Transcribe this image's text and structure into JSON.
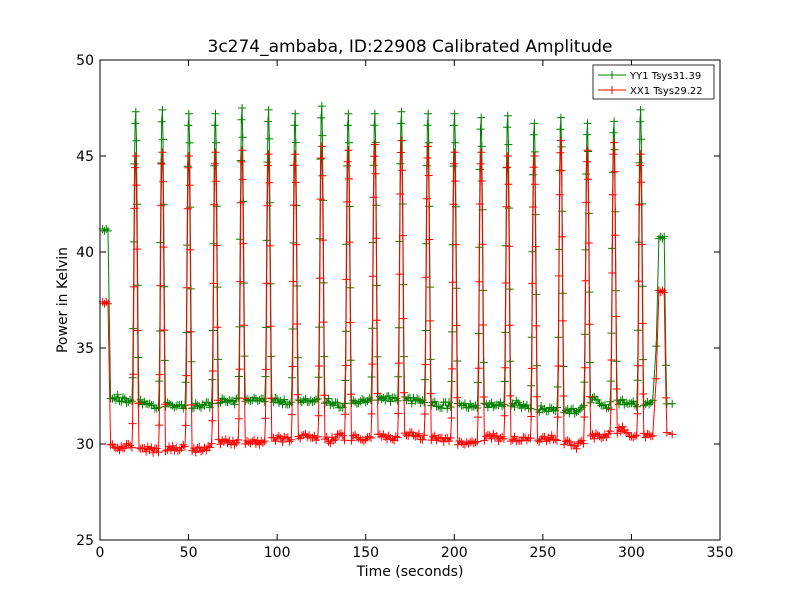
{
  "chart_data": {
    "type": "line",
    "title": "3c274_ambaba, ID:22908 Calibrated Amplitude",
    "xlabel": "Time (seconds)",
    "ylabel": "Power in Kelvin",
    "xlim": [
      0,
      350
    ],
    "ylim": [
      25,
      50
    ],
    "xticks": [
      0,
      50,
      100,
      150,
      200,
      250,
      300,
      350
    ],
    "yticks": [
      25,
      30,
      35,
      40,
      45,
      50
    ],
    "grid": false,
    "legend_position": "top-right",
    "markers": "plus",
    "series": [
      {
        "name": "YY1 Tsys31.39",
        "color": "#008000",
        "baseline": 32.2,
        "start": {
          "x": [
            1.5,
            2.5,
            3.5,
            4.5
          ],
          "y": [
            41.2,
            41.1,
            41.2,
            41.1
          ]
        },
        "end": {
          "x": [
            315.5,
            316.5,
            317.5,
            318.5
          ],
          "y": [
            40.7,
            40.8,
            40.7,
            40.8
          ]
        },
        "tail": {
          "x": [
            320,
            323
          ],
          "y": [
            32.1,
            32.1
          ]
        },
        "baseline_points": [
          [
            6,
            32.5
          ],
          [
            10,
            32.4
          ],
          [
            15,
            32.3
          ],
          [
            25,
            32.2
          ],
          [
            30,
            32.0
          ],
          [
            40,
            32.1
          ],
          [
            45,
            32.0
          ],
          [
            55,
            32.0
          ],
          [
            60,
            32.0
          ],
          [
            70,
            32.3
          ],
          [
            75,
            32.2
          ],
          [
            85,
            32.4
          ],
          [
            90,
            32.4
          ],
          [
            100,
            32.2
          ],
          [
            105,
            32.2
          ],
          [
            115,
            32.3
          ],
          [
            120,
            32.3
          ],
          [
            130,
            32.2
          ],
          [
            135,
            32.0
          ],
          [
            145,
            32.2
          ],
          [
            150,
            32.2
          ],
          [
            160,
            32.4
          ],
          [
            165,
            32.3
          ],
          [
            175,
            32.3
          ],
          [
            180,
            32.2
          ],
          [
            190,
            32.1
          ],
          [
            195,
            32.0
          ],
          [
            205,
            32.1
          ],
          [
            210,
            32.0
          ],
          [
            220,
            32.0
          ],
          [
            225,
            32.0
          ],
          [
            235,
            32.1
          ],
          [
            240,
            31.9
          ],
          [
            250,
            31.8
          ],
          [
            255,
            31.8
          ],
          [
            265,
            31.7
          ],
          [
            270,
            31.7
          ],
          [
            280,
            32.4
          ],
          [
            285,
            32.0
          ],
          [
            295,
            32.2
          ],
          [
            300,
            32.1
          ],
          [
            310,
            32.1
          ]
        ],
        "peaks": [
          {
            "x": 20,
            "y": 47.3
          },
          {
            "x": 35,
            "y": 47.4
          },
          {
            "x": 50,
            "y": 47.2
          },
          {
            "x": 65,
            "y": 47.2
          },
          {
            "x": 80,
            "y": 47.5
          },
          {
            "x": 95,
            "y": 47.4
          },
          {
            "x": 110,
            "y": 47.2
          },
          {
            "x": 125,
            "y": 47.6
          },
          {
            "x": 140,
            "y": 47.2
          },
          {
            "x": 155,
            "y": 47.2
          },
          {
            "x": 170,
            "y": 47.3
          },
          {
            "x": 185,
            "y": 47.2
          },
          {
            "x": 200,
            "y": 47.2
          },
          {
            "x": 215,
            "y": 47.0
          },
          {
            "x": 230,
            "y": 47.1
          },
          {
            "x": 245,
            "y": 46.7
          },
          {
            "x": 260,
            "y": 47.0
          },
          {
            "x": 275,
            "y": 46.7
          },
          {
            "x": 290,
            "y": 46.8
          },
          {
            "x": 305,
            "y": 47.4
          }
        ]
      },
      {
        "name": "XX1 Tsys29.22",
        "color": "#ff0000",
        "baseline": 30.1,
        "start": {
          "x": [
            1.5,
            2.5,
            3.5,
            4.5
          ],
          "y": [
            37.4,
            37.3,
            37.4,
            37.3
          ]
        },
        "end": {
          "x": [
            315.5,
            316.5,
            317.5,
            318.5
          ],
          "y": [
            38.0,
            37.9,
            38.0,
            37.9
          ]
        },
        "tail": {
          "x": [
            320,
            323
          ],
          "y": [
            30.6,
            30.5
          ]
        },
        "baseline_points": [
          [
            6,
            29.9
          ],
          [
            10,
            29.8
          ],
          [
            15,
            30.0
          ],
          [
            25,
            29.7
          ],
          [
            30,
            29.7
          ],
          [
            40,
            29.8
          ],
          [
            45,
            29.8
          ],
          [
            55,
            29.7
          ],
          [
            60,
            29.8
          ],
          [
            70,
            30.2
          ],
          [
            75,
            30.1
          ],
          [
            85,
            30.1
          ],
          [
            90,
            30.0
          ],
          [
            100,
            30.3
          ],
          [
            105,
            30.2
          ],
          [
            115,
            30.5
          ],
          [
            120,
            30.3
          ],
          [
            130,
            30.2
          ],
          [
            135,
            30.4
          ],
          [
            145,
            30.3
          ],
          [
            150,
            30.2
          ],
          [
            160,
            30.5
          ],
          [
            165,
            30.2
          ],
          [
            175,
            30.5
          ],
          [
            180,
            30.4
          ],
          [
            190,
            30.3
          ],
          [
            195,
            30.2
          ],
          [
            205,
            30.1
          ],
          [
            210,
            30.0
          ],
          [
            220,
            30.4
          ],
          [
            225,
            30.3
          ],
          [
            235,
            30.3
          ],
          [
            240,
            30.2
          ],
          [
            250,
            30.3
          ],
          [
            255,
            30.3
          ],
          [
            265,
            30.0
          ],
          [
            270,
            29.9
          ],
          [
            280,
            30.5
          ],
          [
            285,
            30.4
          ],
          [
            295,
            30.8
          ],
          [
            300,
            30.4
          ],
          [
            310,
            30.4
          ]
        ],
        "peaks": [
          {
            "x": 20,
            "y": 45.0
          },
          {
            "x": 35,
            "y": 45.2
          },
          {
            "x": 50,
            "y": 45.0
          },
          {
            "x": 65,
            "y": 45.2
          },
          {
            "x": 80,
            "y": 45.3
          },
          {
            "x": 95,
            "y": 45.1
          },
          {
            "x": 110,
            "y": 45.1
          },
          {
            "x": 125,
            "y": 45.5
          },
          {
            "x": 140,
            "y": 45.3
          },
          {
            "x": 155,
            "y": 45.6
          },
          {
            "x": 170,
            "y": 45.8
          },
          {
            "x": 185,
            "y": 45.5
          },
          {
            "x": 200,
            "y": 45.2
          },
          {
            "x": 215,
            "y": 45.2
          },
          {
            "x": 230,
            "y": 45.0
          },
          {
            "x": 245,
            "y": 45.0
          },
          {
            "x": 260,
            "y": 45.8
          },
          {
            "x": 275,
            "y": 45.3
          },
          {
            "x": 290,
            "y": 45.7
          },
          {
            "x": 305,
            "y": 45.1
          }
        ]
      }
    ]
  }
}
